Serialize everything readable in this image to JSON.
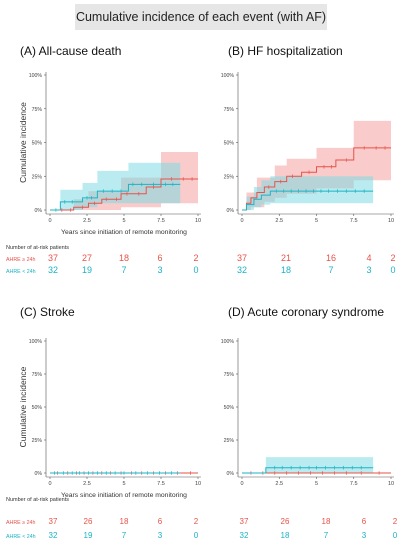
{
  "figure_title": "Cumulative incidence of each event (with AF)",
  "colors": {
    "ge24": "#e8524a",
    "lt24": "#1bb3c4",
    "ge24_fill": "#f4a3a0",
    "lt24_fill": "#7fdbe4",
    "title_bg": "#e6e6e6"
  },
  "risk_table_title": "Number of at-risk patients",
  "chart_data": [
    {
      "type": "line",
      "panel_title": "(A) All-cause death",
      "xlabel": "Years since initiation of remote monitoring",
      "ylabel": "Cumulative incidence",
      "xlim": [
        0,
        10
      ],
      "ylim": [
        0,
        100
      ],
      "x_ticks": [
        0,
        2.5,
        5,
        7.5,
        10
      ],
      "x_tick_labels": [
        "0",
        "2.5",
        "5",
        "7.5",
        "10"
      ],
      "y_ticks": [
        0,
        25,
        50,
        75,
        100
      ],
      "y_tick_labels": [
        "0%",
        "25%",
        "50%",
        "75%",
        "100%"
      ],
      "grid": false,
      "series": [
        {
          "name": "AHRE ≥ 24h",
          "color_key": "ge24",
          "steps": [
            [
              0,
              0
            ],
            [
              1.6,
              2
            ],
            [
              2.6,
              5
            ],
            [
              3.5,
              8
            ],
            [
              4.8,
              12
            ],
            [
              6.5,
              17
            ],
            [
              7.5,
              23
            ],
            [
              10,
              23
            ]
          ],
          "ci_lower": [
            [
              0,
              0
            ],
            [
              2.6,
              0
            ],
            [
              4.8,
              2
            ],
            [
              7.5,
              5
            ],
            [
              10,
              5
            ]
          ],
          "ci_upper": [
            [
              0,
              0
            ],
            [
              1.6,
              8
            ],
            [
              2.6,
              14
            ],
            [
              4.8,
              24
            ],
            [
              7.5,
              43
            ],
            [
              10,
              43
            ]
          ],
          "censor": [
            0.8,
            1.4,
            2.2,
            3.0,
            3.8,
            4.5,
            5.2,
            6.0,
            7.0,
            8.2,
            9.0,
            9.6
          ]
        },
        {
          "name": "AHRE < 24h",
          "color_key": "lt24",
          "steps": [
            [
              0,
              0
            ],
            [
              0.7,
              6
            ],
            [
              2.2,
              9
            ],
            [
              3.2,
              14
            ],
            [
              5.3,
              19
            ],
            [
              8.8,
              19
            ]
          ],
          "ci_lower": [
            [
              0,
              0
            ],
            [
              0.7,
              0
            ],
            [
              2.2,
              2
            ],
            [
              3.2,
              5
            ],
            [
              8.8,
              5
            ]
          ],
          "ci_upper": [
            [
              0,
              0
            ],
            [
              0.7,
              15
            ],
            [
              2.2,
              20
            ],
            [
              3.2,
              29
            ],
            [
              5.3,
              35
            ],
            [
              8.8,
              35
            ]
          ],
          "censor": [
            0.4,
            1.0,
            1.5,
            2.5,
            2.8,
            3.6,
            4.2,
            4.8,
            5.6,
            6.2,
            7.0,
            7.8,
            8.3
          ]
        }
      ],
      "risk_table": {
        "rows": [
          {
            "label": "AHRE ≥ 24h",
            "counts": [
              "37",
              "27",
              "18",
              "6",
              "2"
            ]
          },
          {
            "label": "AHRE < 24h",
            "counts": [
              "32",
              "19",
              "7",
              "3",
              "0"
            ]
          }
        ]
      }
    },
    {
      "type": "line",
      "panel_title": "(B) HF hospitalization",
      "xlabel": "",
      "ylabel": "",
      "xlim": [
        0,
        10
      ],
      "ylim": [
        0,
        100
      ],
      "x_ticks": [
        0,
        2.5,
        5,
        7.5,
        10
      ],
      "x_tick_labels": [
        "0",
        "2.5",
        "5",
        "7.5",
        "10"
      ],
      "y_ticks": [
        0,
        25,
        50,
        75,
        100
      ],
      "y_tick_labels": [
        "0%",
        "25%",
        "50%",
        "75%",
        "100%"
      ],
      "grid": false,
      "series": [
        {
          "name": "AHRE ≥ 24h",
          "color_key": "ge24",
          "steps": [
            [
              0,
              0
            ],
            [
              0.3,
              5
            ],
            [
              0.6,
              9
            ],
            [
              1.0,
              13
            ],
            [
              1.5,
              17
            ],
            [
              2.2,
              21
            ],
            [
              3.0,
              25
            ],
            [
              4.0,
              28
            ],
            [
              5.0,
              32
            ],
            [
              6.3,
              37
            ],
            [
              7.5,
              46
            ],
            [
              10,
              46
            ]
          ],
          "ci_lower": [
            [
              0,
              0
            ],
            [
              0.6,
              2
            ],
            [
              1.5,
              6
            ],
            [
              2.2,
              9
            ],
            [
              3.0,
              12
            ],
            [
              5.0,
              16
            ],
            [
              7.5,
              22
            ],
            [
              10,
              22
            ]
          ],
          "ci_upper": [
            [
              0,
              0
            ],
            [
              0.3,
              13
            ],
            [
              1.0,
              24
            ],
            [
              2.2,
              33
            ],
            [
              3.0,
              38
            ],
            [
              5.0,
              46
            ],
            [
              7.5,
              66
            ],
            [
              10,
              66
            ]
          ],
          "censor": [
            1.8,
            2.6,
            3.4,
            4.5,
            5.5,
            6.0,
            7.0,
            8.2,
            9.0,
            9.6
          ]
        },
        {
          "name": "AHRE < 24h",
          "color_key": "lt24",
          "steps": [
            [
              0,
              0
            ],
            [
              0.3,
              4
            ],
            [
              0.8,
              8
            ],
            [
              1.3,
              11
            ],
            [
              1.9,
              14
            ],
            [
              8.8,
              14
            ]
          ],
          "ci_lower": [
            [
              0,
              0
            ],
            [
              0.8,
              2
            ],
            [
              1.3,
              4
            ],
            [
              1.9,
              5
            ],
            [
              8.8,
              5
            ]
          ],
          "ci_upper": [
            [
              0,
              0
            ],
            [
              0.3,
              10
            ],
            [
              0.8,
              17
            ],
            [
              1.3,
              22
            ],
            [
              1.9,
              25
            ],
            [
              8.8,
              25
            ]
          ],
          "censor": [
            2.3,
            2.8,
            3.3,
            3.8,
            4.3,
            4.8,
            5.3,
            5.8,
            6.4,
            7.0,
            7.6,
            8.2
          ]
        }
      ],
      "risk_table": {
        "rows": [
          {
            "label": "",
            "counts": [
              "37",
              "21",
              "16",
              "4",
              "2"
            ]
          },
          {
            "label": "",
            "counts": [
              "32",
              "18",
              "7",
              "3",
              "0"
            ]
          }
        ]
      }
    },
    {
      "type": "line",
      "panel_title": "(C) Stroke",
      "xlabel": "Years since initiation of remote monitoring",
      "ylabel": "Cumulative incidence",
      "xlim": [
        0,
        10
      ],
      "ylim": [
        0,
        100
      ],
      "x_ticks": [
        0,
        2.5,
        5,
        7.5,
        10
      ],
      "x_tick_labels": [
        "0",
        "2.5",
        "5",
        "7.5",
        "10"
      ],
      "y_ticks": [
        0,
        25,
        50,
        75,
        100
      ],
      "y_tick_labels": [
        "0%",
        "25%",
        "50%",
        "75%",
        "100%"
      ],
      "grid": false,
      "series": [
        {
          "name": "AHRE ≥ 24h",
          "color_key": "ge24",
          "steps": [
            [
              0,
              0
            ],
            [
              10,
              0
            ]
          ],
          "ci_lower": [],
          "ci_upper": [],
          "censor": [
            0.5,
            1.2,
            1.8,
            2.3,
            2.9,
            3.5,
            4.1,
            4.8,
            5.5,
            6.2,
            7.0,
            7.8,
            8.6,
            9.5
          ]
        },
        {
          "name": "AHRE < 24h",
          "color_key": "lt24",
          "steps": [
            [
              0,
              0
            ],
            [
              8.8,
              0
            ]
          ],
          "ci_lower": [],
          "ci_upper": [],
          "censor": [
            0.3,
            0.9,
            1.5,
            2.0,
            2.6,
            3.2,
            3.8,
            4.4,
            5.0,
            5.8,
            6.6,
            7.4,
            8.2
          ]
        }
      ],
      "risk_table": {
        "rows": [
          {
            "label": "AHRE ≥ 24h",
            "counts": [
              "37",
              "26",
              "18",
              "6",
              "2"
            ]
          },
          {
            "label": "AHRE < 24h",
            "counts": [
              "32",
              "19",
              "7",
              "3",
              "0"
            ]
          }
        ]
      }
    },
    {
      "type": "line",
      "panel_title": "(D) Acute coronary syndrome",
      "xlabel": "",
      "ylabel": "",
      "xlim": [
        0,
        10
      ],
      "ylim": [
        0,
        100
      ],
      "x_ticks": [
        0,
        2.5,
        5,
        7.5,
        10
      ],
      "x_tick_labels": [
        "0",
        "2.5",
        "5",
        "7.5",
        "10"
      ],
      "y_ticks": [
        0,
        25,
        50,
        75,
        100
      ],
      "y_tick_labels": [
        "0%",
        "25%",
        "50%",
        "75%",
        "100%"
      ],
      "grid": false,
      "series": [
        {
          "name": "AHRE ≥ 24h",
          "color_key": "ge24",
          "steps": [
            [
              0,
              0
            ],
            [
              10,
              0
            ]
          ],
          "ci_lower": [],
          "ci_upper": [],
          "censor": [
            0.6,
            1.4,
            2.2,
            3.0,
            3.8,
            4.6,
            5.4,
            6.2,
            7.0,
            8.0,
            9.2
          ]
        },
        {
          "name": "AHRE < 24h",
          "color_key": "lt24",
          "steps": [
            [
              0,
              0
            ],
            [
              1.6,
              4
            ],
            [
              8.8,
              4
            ]
          ],
          "ci_lower": [
            [
              0,
              0
            ],
            [
              1.6,
              0
            ],
            [
              8.8,
              0
            ]
          ],
          "ci_upper": [
            [
              0,
              0
            ],
            [
              1.6,
              12
            ],
            [
              8.8,
              12
            ]
          ],
          "censor": [
            2.2,
            2.7,
            3.3,
            3.9,
            4.5,
            5.0,
            5.6,
            6.2,
            6.8,
            7.4,
            8.0
          ]
        }
      ],
      "risk_table": {
        "rows": [
          {
            "label": "AHRE ≥ 24h",
            "counts": [
              "37",
              "26",
              "18",
              "6",
              "2"
            ]
          },
          {
            "label": "AHRE < 24h",
            "counts": [
              "32",
              "18",
              "7",
              "3",
              "0"
            ]
          }
        ]
      }
    }
  ]
}
